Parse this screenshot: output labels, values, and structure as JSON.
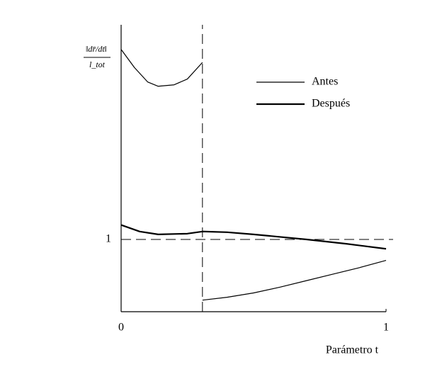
{
  "chart_data": {
    "type": "line",
    "ylabel": {
      "numerator": "‖dr̄/dt‖",
      "denominator": "l_tot"
    },
    "xlabel": "Parámetro t",
    "xlim": [
      0,
      1
    ],
    "xticks": [
      0,
      1
    ],
    "ylim": [
      0,
      4
    ],
    "yticks": [
      1
    ],
    "hline": 1,
    "vline": 0.307,
    "legend": "upper right",
    "series": [
      {
        "name": "Antes",
        "color": "#000000",
        "width": 1.2,
        "x": [
          0,
          0.05,
          0.1,
          0.14,
          0.2,
          0.25,
          0.307,
          0.307,
          0.307,
          0.4,
          0.5,
          0.6,
          0.7,
          0.8,
          0.9,
          1
        ],
        "values": [
          3.63,
          3.38,
          3.18,
          3.12,
          3.14,
          3.22,
          3.45,
          null,
          0.16,
          0.2,
          0.26,
          0.34,
          0.43,
          0.52,
          0.61,
          0.71
        ]
      },
      {
        "name": "Después",
        "color": "#000000",
        "width": 2.2,
        "x": [
          0,
          0.07,
          0.14,
          0.25,
          0.307,
          0.4,
          0.5,
          0.7,
          0.85,
          1
        ],
        "values": [
          1.2,
          1.11,
          1.07,
          1.08,
          1.11,
          1.1,
          1.07,
          1.0,
          0.94,
          0.87
        ]
      }
    ]
  }
}
